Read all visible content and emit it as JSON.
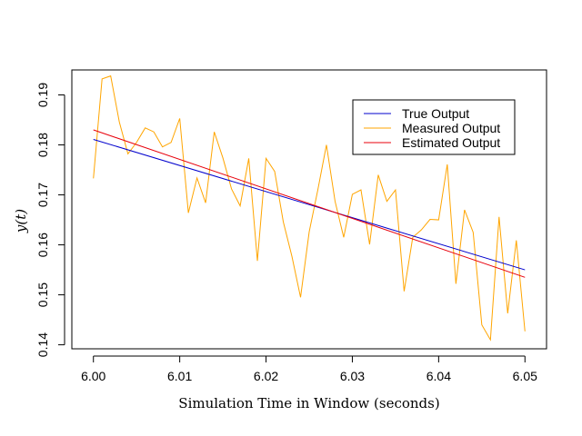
{
  "chart_data": {
    "type": "line",
    "xlabel": "Simulation Time in Window (seconds)",
    "ylabel": "y(t)",
    "xlim": [
      5.9975,
      6.0525
    ],
    "ylim": [
      0.1392,
      0.195
    ],
    "x_ticks": [
      "6.00",
      "6.01",
      "6.02",
      "6.03",
      "6.04",
      "6.05"
    ],
    "x_tick_values": [
      6.0,
      6.01,
      6.02,
      6.03,
      6.04,
      6.05
    ],
    "y_ticks": [
      "0.14",
      "0.15",
      "0.16",
      "0.17",
      "0.18",
      "0.19"
    ],
    "y_tick_values": [
      0.14,
      0.15,
      0.16,
      0.17,
      0.18,
      0.19
    ],
    "grid": false,
    "legend_position": "top-right",
    "series": [
      {
        "name": "True Output",
        "color": "#0000CD",
        "x": [
          6.0,
          6.05
        ],
        "y": [
          0.1811,
          0.155
        ]
      },
      {
        "name": "Measured Output",
        "color": "#FFA500",
        "x": [
          6.0,
          6.001,
          6.002,
          6.003,
          6.004,
          6.005,
          6.006,
          6.007,
          6.008,
          6.009,
          6.01,
          6.011,
          6.012,
          6.013,
          6.014,
          6.015,
          6.016,
          6.017,
          6.018,
          6.019,
          6.02,
          6.021,
          6.022,
          6.023,
          6.024,
          6.025,
          6.026,
          6.027,
          6.028,
          6.029,
          6.03,
          6.031,
          6.032,
          6.033,
          6.034,
          6.035,
          6.036,
          6.037,
          6.038,
          6.039,
          6.04,
          6.041,
          6.042,
          6.043,
          6.044,
          6.045,
          6.046,
          6.047,
          6.048,
          6.049,
          6.05
        ],
        "y": [
          0.1733,
          0.1932,
          0.1938,
          0.1846,
          0.1782,
          0.1805,
          0.1834,
          0.1826,
          0.1796,
          0.1805,
          0.1853,
          0.1664,
          0.1734,
          0.1684,
          0.1826,
          0.1774,
          0.1712,
          0.1678,
          0.1773,
          0.1568,
          0.1773,
          0.1747,
          0.1646,
          0.1577,
          0.1495,
          0.1626,
          0.171,
          0.18,
          0.1687,
          0.1615,
          0.1701,
          0.171,
          0.1601,
          0.174,
          0.1687,
          0.171,
          0.1507,
          0.1615,
          0.163,
          0.1651,
          0.165,
          0.1761,
          0.1522,
          0.167,
          0.1625,
          0.144,
          0.141,
          0.1656,
          0.1463,
          0.1609,
          0.1427
        ]
      },
      {
        "name": "Estimated Output",
        "color": "#E8000B",
        "x": [
          6.0,
          6.05
        ],
        "y": [
          0.183,
          0.1535
        ]
      }
    ]
  }
}
